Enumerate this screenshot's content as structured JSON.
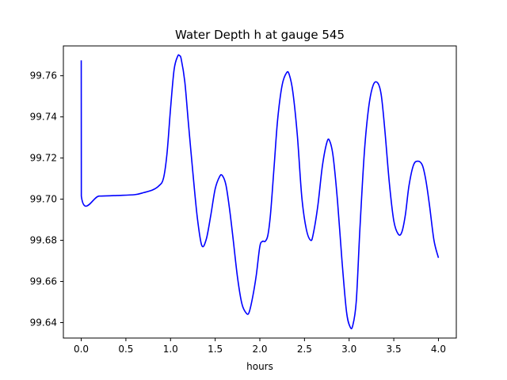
{
  "chart_data": {
    "type": "line",
    "title": "Water Depth h at gauge 545",
    "xlabel": "hours",
    "ylabel": "",
    "xlim": [
      -0.2,
      4.2
    ],
    "ylim": [
      99.6325,
      99.7745
    ],
    "xticks": [
      0.0,
      0.5,
      1.0,
      1.5,
      2.0,
      2.5,
      3.0,
      3.5,
      4.0
    ],
    "xtick_labels": [
      "0.0",
      "0.5",
      "1.0",
      "1.5",
      "2.0",
      "2.5",
      "3.0",
      "3.5",
      "4.0"
    ],
    "yticks": [
      99.64,
      99.66,
      99.68,
      99.7,
      99.72,
      99.74,
      99.76
    ],
    "ytick_labels": [
      "99.64",
      "99.66",
      "99.68",
      "99.70",
      "99.72",
      "99.74",
      "99.76"
    ],
    "grid": false,
    "series": [
      {
        "color": "#0000ff",
        "x": [
          0.0,
          0.001,
          0.2,
          0.4,
          0.6,
          0.7,
          0.8,
          0.87,
          0.92,
          0.96,
          1.0,
          1.04,
          1.08,
          1.1,
          1.12,
          1.16,
          1.2,
          1.25,
          1.3,
          1.35,
          1.4,
          1.45,
          1.5,
          1.55,
          1.58,
          1.62,
          1.66,
          1.7,
          1.75,
          1.8,
          1.85,
          1.88,
          1.92,
          1.96,
          2.0,
          2.03,
          2.06,
          2.09,
          2.12,
          2.16,
          2.2,
          2.25,
          2.3,
          2.33,
          2.37,
          2.42,
          2.47,
          2.52,
          2.57,
          2.6,
          2.65,
          2.7,
          2.75,
          2.78,
          2.82,
          2.87,
          2.92,
          2.97,
          3.01,
          3.04,
          3.08,
          3.12,
          3.17,
          3.22,
          3.27,
          3.32,
          3.36,
          3.4,
          3.45,
          3.5,
          3.55,
          3.59,
          3.63,
          3.67,
          3.72,
          3.77,
          3.82,
          3.86,
          3.9,
          3.95,
          4.0
        ],
        "y": [
          99.7675,
          99.7015,
          99.7015,
          99.7018,
          99.7022,
          99.7032,
          99.7045,
          99.7065,
          99.71,
          99.722,
          99.744,
          99.763,
          99.7695,
          99.7698,
          99.768,
          99.757,
          99.737,
          99.713,
          99.691,
          99.6775,
          99.6805,
          99.692,
          99.705,
          99.711,
          99.7115,
          99.707,
          99.6955,
          99.681,
          99.662,
          99.649,
          99.6445,
          99.645,
          99.6525,
          99.663,
          99.677,
          99.6795,
          99.6795,
          99.6825,
          99.693,
          99.716,
          99.739,
          99.7555,
          99.7615,
          99.7605,
          99.752,
          99.731,
          99.701,
          99.6855,
          99.68,
          99.6835,
          99.697,
          99.716,
          99.7275,
          99.7285,
          99.721,
          99.699,
          99.67,
          99.6455,
          99.638,
          99.6385,
          99.6505,
          99.685,
          99.7225,
          99.745,
          99.7555,
          99.7565,
          99.7505,
          99.7335,
          99.708,
          99.6895,
          99.683,
          99.684,
          99.6925,
          99.7065,
          99.7165,
          99.7185,
          99.7165,
          99.709,
          99.697,
          99.68,
          99.6715
        ]
      }
    ]
  }
}
